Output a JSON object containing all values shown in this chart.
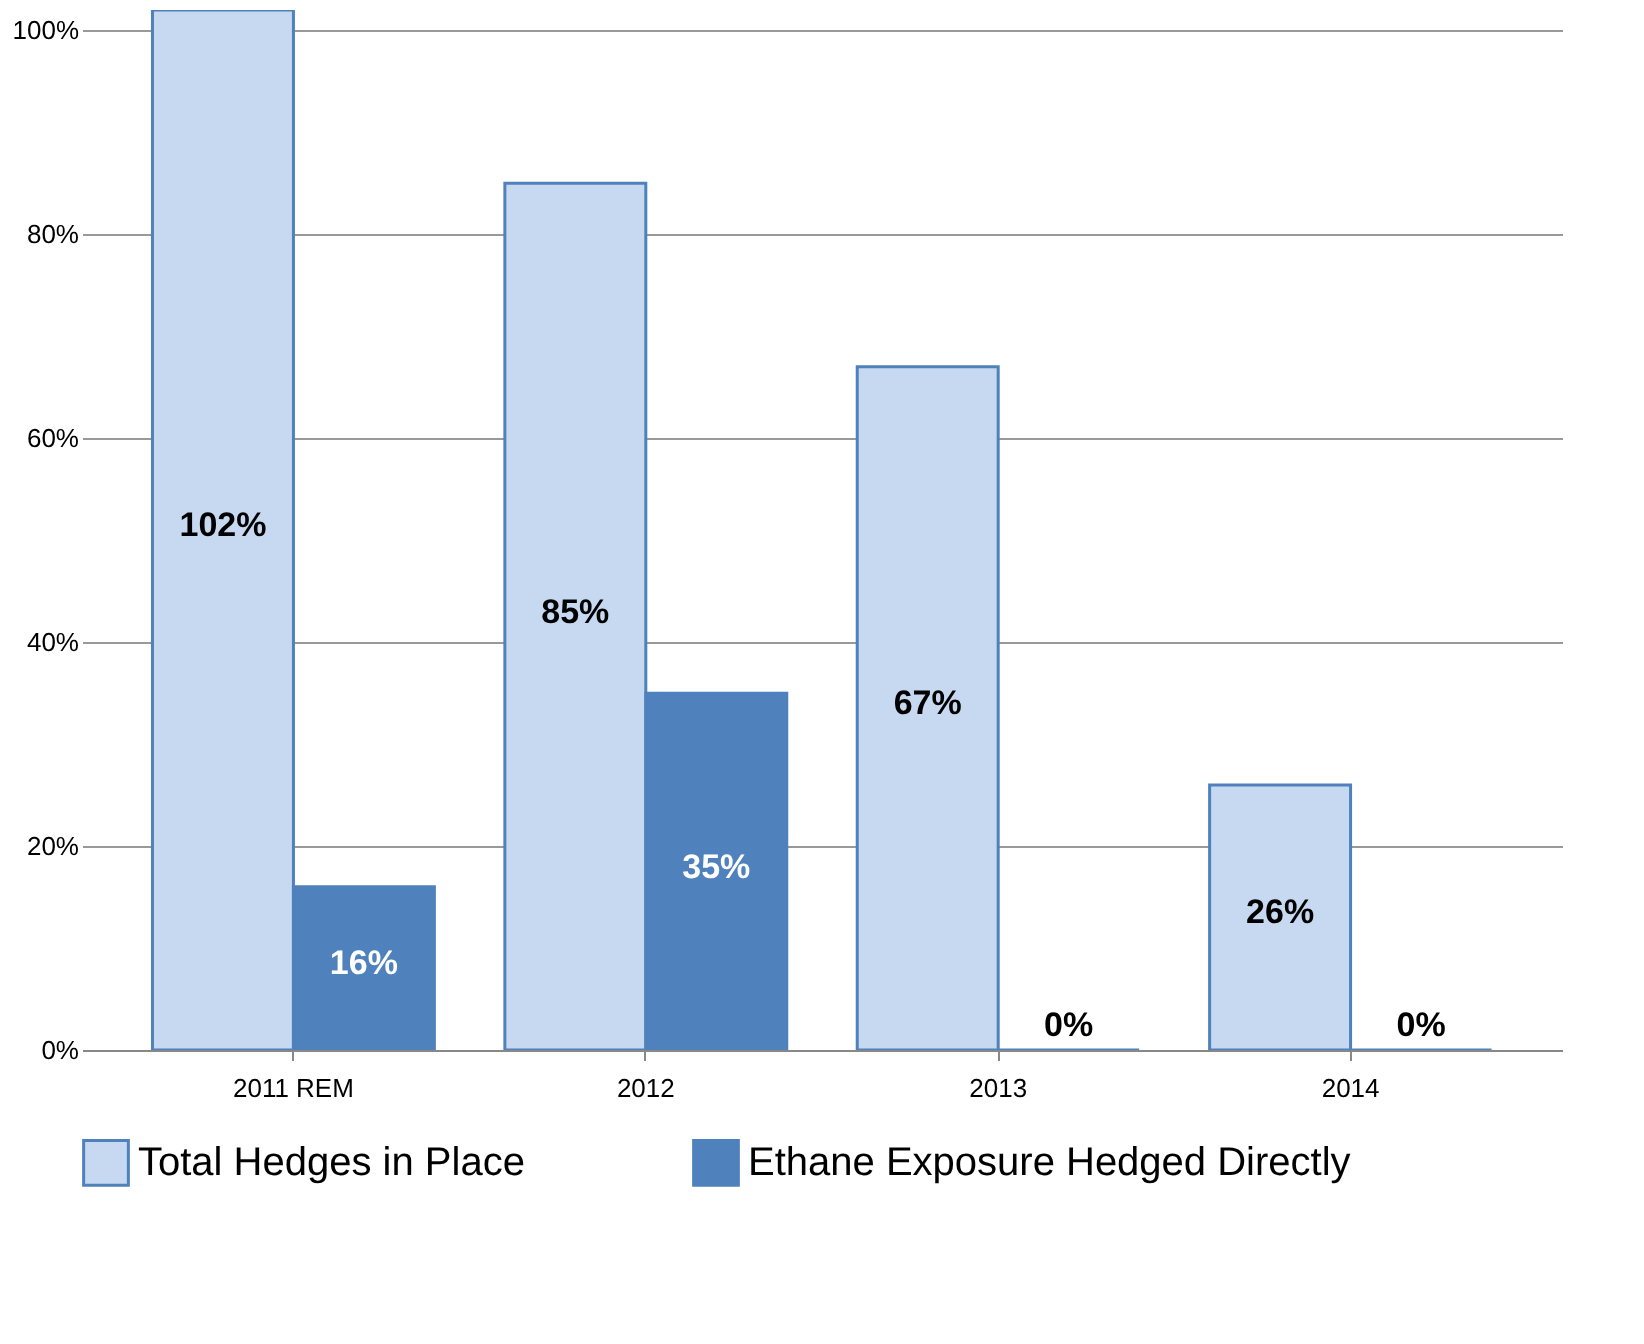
{
  "chart_data": {
    "type": "bar",
    "categories": [
      "2011 REM",
      "2012",
      "2013",
      "2014"
    ],
    "series": [
      {
        "name": "Total Hedges in Place",
        "color": "#c6d9f1",
        "values": [
          102,
          85,
          67,
          26
        ]
      },
      {
        "name": "Ethane Exposure Hedged Directly",
        "color": "#4f81bd",
        "values": [
          16,
          35,
          0,
          0
        ]
      }
    ],
    "ylim": [
      0,
      102
    ],
    "yticks": [
      {
        "value": 0,
        "label": "0%"
      },
      {
        "value": 20,
        "label": "20%"
      },
      {
        "value": 40,
        "label": "40%"
      },
      {
        "value": 60,
        "label": "60%"
      },
      {
        "value": 80,
        "label": "80%"
      },
      {
        "value": 100,
        "label": "100%"
      }
    ],
    "value_labels": [
      [
        "102%",
        "85%",
        "67%",
        "26%"
      ],
      [
        "16%",
        "35%",
        "0%",
        "0%"
      ]
    ],
    "grid": "y",
    "legend": "bottom"
  }
}
